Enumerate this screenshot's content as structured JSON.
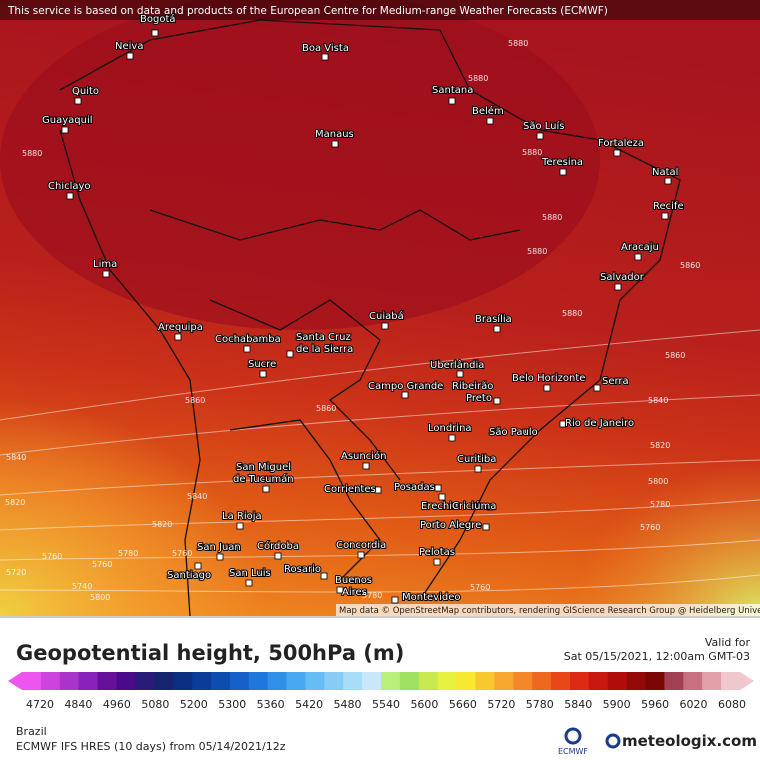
{
  "banner": "This service is based on data and products of the European Centre for Medium-range Weather Forecasts (ECMWF)",
  "cities": [
    "Bogotá",
    "Neiva",
    "Boa Vista",
    "Quito",
    "Guayaquil",
    "Santana",
    "Belém",
    "São Luís",
    "Manaus",
    "Fortaleza",
    "Teresina",
    "Natal",
    "Chiclayo",
    "Recife",
    "Aracaju",
    "Lima",
    "Salvador",
    "Arequipa",
    "Cochabamba",
    "Cuiabá",
    "Brasília",
    "Santa Cruz",
    "de la Sierra",
    "Sucre",
    "Uberlândia",
    "Belo Horizonte",
    "Campo Grande",
    "Ribeirão",
    "Preto",
    "Serra",
    "Londrina",
    "São Paulo",
    "Rio de Janeiro",
    "Asunción",
    "Curitiba",
    "San Miguel",
    "de Tucumán",
    "Corrientes",
    "Posadas",
    "Erechim",
    "Criciúma",
    "La Rioja",
    "Porto Alegre",
    "Concordia",
    "Pelotas",
    "San Juan",
    "Córdoba",
    "Rosario",
    "Santiago",
    "San Luis",
    "Buenos",
    "Aires",
    "Montevideo"
  ],
  "contour_labels": [
    5880,
    5880,
    5880,
    5880,
    5880,
    5880,
    5880,
    5860,
    5860,
    5840,
    5820,
    5800,
    5780,
    5760,
    5860,
    5840,
    5860,
    5820,
    5800,
    5840,
    5820,
    5780,
    5760,
    5720,
    5740,
    5780,
    5760,
    5760,
    5760
  ],
  "attribution": "Map data © OpenStreetMap contributors, rendering GIScience Research Group @ Heidelberg University",
  "legend": {
    "title": "Geopotential height, 500hPa (m)",
    "valid_label": "Valid for",
    "valid_time": "Sat 05/15/2021, 12:00am GMT-03",
    "ticks": [
      4720,
      4840,
      4960,
      5080,
      5200,
      5300,
      5360,
      5420,
      5480,
      5540,
      5600,
      5660,
      5720,
      5780,
      5840,
      5900,
      5960,
      6020,
      6080
    ],
    "colors": [
      "#ee55ee",
      "#cc44dd",
      "#aa33cc",
      "#8822bb",
      "#661199",
      "#4b0a8a",
      "#2a1a7a",
      "#16246e",
      "#0b2e80",
      "#0a3c99",
      "#0e4cb0",
      "#1460c8",
      "#1e78dc",
      "#3090e8",
      "#48a8f0",
      "#66bcf4",
      "#88ccf6",
      "#a8dcf8",
      "#c8e8fa",
      "#b8f07a",
      "#a0e060",
      "#c8e850",
      "#e8f040",
      "#f8e830",
      "#f8c830",
      "#f8a830",
      "#f48828",
      "#ee6820",
      "#e84818",
      "#dc2a14",
      "#c81810",
      "#b00c0c",
      "#940808",
      "#7a0606",
      "#a04050",
      "#c87080",
      "#e0a0a8",
      "#f0c8cc"
    ]
  },
  "footer": {
    "region": "Brazil",
    "model": "ECMWF IFS HRES (10 days) from 05/14/2021/12z",
    "ecmwf": "ECMWF",
    "brand": "meteologix.com"
  }
}
